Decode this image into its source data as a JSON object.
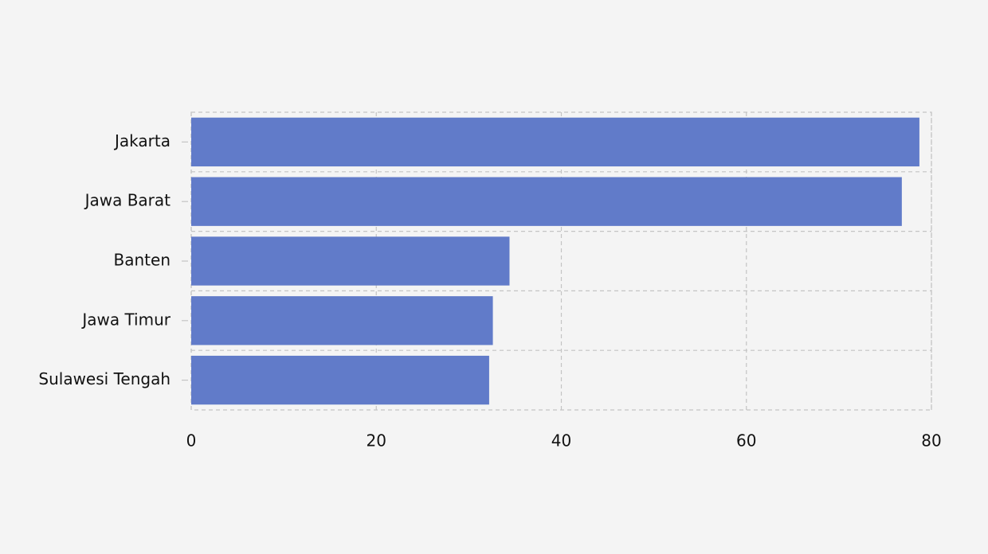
{
  "chart_data": {
    "type": "bar",
    "orientation": "horizontal",
    "categories": [
      "Jakarta",
      "Jawa Barat",
      "Banten",
      "Jawa Timur",
      "Sulawesi Tengah"
    ],
    "values": [
      78.7,
      76.8,
      34.4,
      32.6,
      32.2
    ],
    "color": "#617bc9",
    "xlim": [
      0,
      80
    ],
    "xticks": [
      0,
      20,
      40,
      60,
      80
    ],
    "grid": true
  }
}
